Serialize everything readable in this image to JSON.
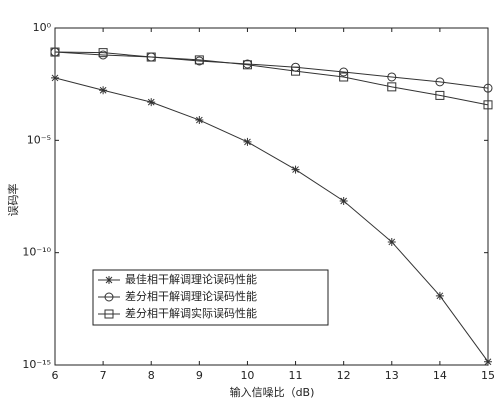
{
  "chart_data": {
    "type": "line",
    "xlabel": "输入信噪比（dB)",
    "ylabel": "误码率",
    "x": [
      6,
      7,
      8,
      9,
      10,
      11,
      12,
      13,
      14,
      15
    ],
    "series": [
      {
        "name": "最佳相干解调理论误码性能",
        "color": "#333333",
        "marker": "star",
        "values": [
          0.006,
          0.0017,
          0.0005,
          8e-05,
          8.5e-06,
          5e-07,
          2e-08,
          3e-10,
          1.2e-12,
          1.4e-15
        ]
      },
      {
        "name": "差分相干解调理论误码性能",
        "color": "#333333",
        "marker": "circle",
        "values": [
          0.085,
          0.063,
          0.051,
          0.034,
          0.025,
          0.018,
          0.011,
          0.0066,
          0.004,
          0.0021
        ]
      },
      {
        "name": "差分相干解调实际误码性能",
        "color": "#333333",
        "marker": "square",
        "values": [
          0.085,
          0.08,
          0.051,
          0.038,
          0.023,
          0.012,
          0.0066,
          0.0024,
          0.001,
          0.00038
        ]
      }
    ],
    "xlim": [
      6,
      15
    ],
    "xticks": [
      6,
      7,
      8,
      9,
      10,
      11,
      12,
      13,
      14,
      15
    ],
    "ylim": [
      1e-15,
      1
    ],
    "yscale": "log",
    "yticks": [
      {
        "value": 1e-15,
        "label": "10⁻¹⁵"
      },
      {
        "value": 1e-10,
        "label": "10⁻¹⁰"
      },
      {
        "value": 1e-05,
        "label": "10⁻⁵"
      },
      {
        "value": 1,
        "label": "10⁰"
      }
    ],
    "legend": "lower left"
  }
}
